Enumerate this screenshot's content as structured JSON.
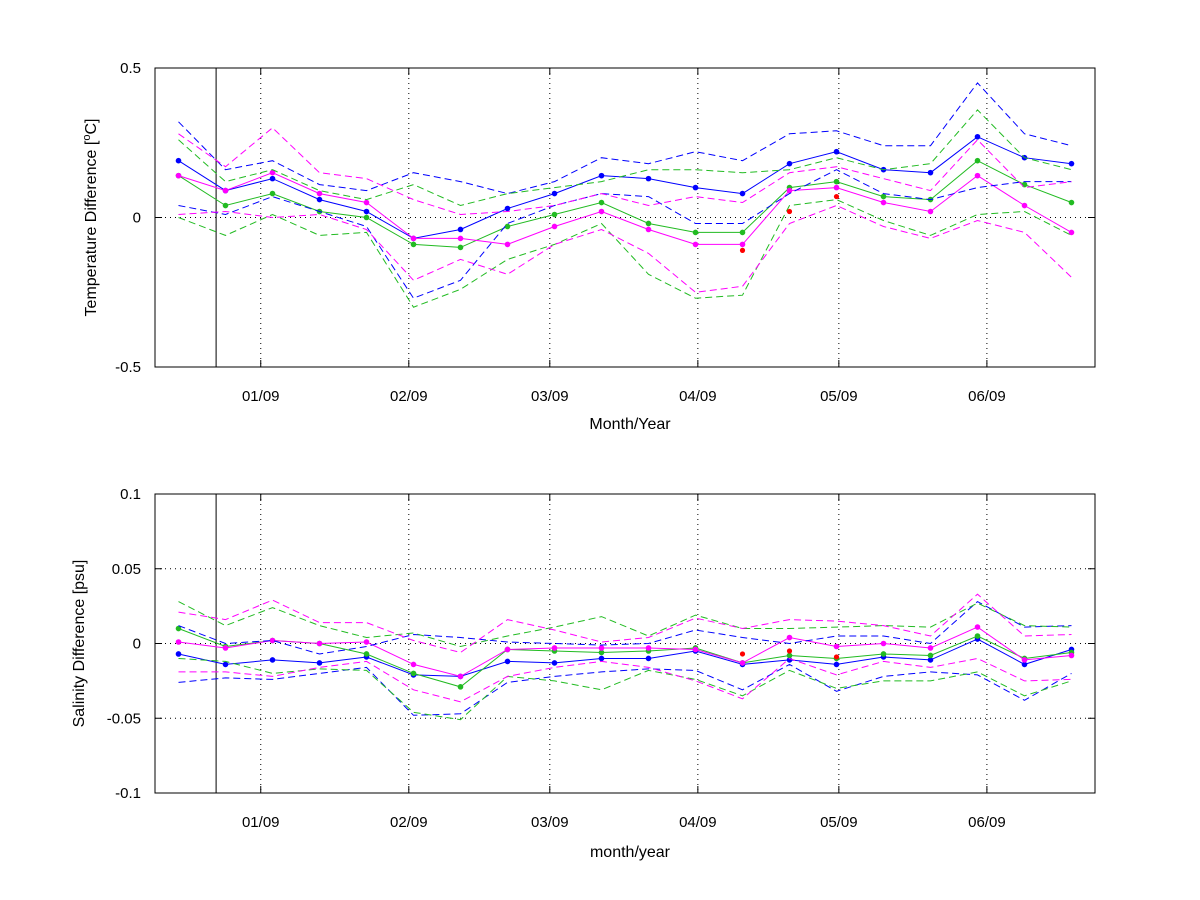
{
  "chart_data": [
    {
      "type": "line",
      "ylabel_main": "Temperature Difference [",
      "ylabel_sup": "o",
      "ylabel_end": "C]",
      "xlabel": "Month/Year",
      "xlim": [
        0,
        20
      ],
      "ylim": [
        -0.5,
        0.5
      ],
      "x_ticks": [
        {
          "x": 2.25,
          "label": "01/09"
        },
        {
          "x": 5.4,
          "label": "02/09"
        },
        {
          "x": 8.4,
          "label": "03/09"
        },
        {
          "x": 11.55,
          "label": "04/09"
        },
        {
          "x": 14.55,
          "label": "05/09"
        },
        {
          "x": 17.7,
          "label": "06/09"
        }
      ],
      "y_ticks": [
        {
          "y": 0.5,
          "label": "0.5"
        },
        {
          "y": 0,
          "label": "0"
        },
        {
          "y": -0.5,
          "label": "-0.5"
        }
      ],
      "grid": "dotted",
      "vertical_reference_line_x": 1.3,
      "x": [
        0.5,
        1.5,
        2.5,
        3.5,
        4.5,
        5.5,
        6.5,
        7.5,
        8.5,
        9.5,
        10.5,
        11.5,
        12.5,
        13.5,
        14.5,
        15.5,
        16.5,
        17.5,
        18.5,
        19.5
      ],
      "series": [
        {
          "color": "#0000ff",
          "style": "solid",
          "marker": true,
          "values": [
            0.19,
            0.09,
            0.13,
            0.06,
            0.02,
            -0.07,
            -0.04,
            0.03,
            0.08,
            0.14,
            0.13,
            0.1,
            0.08,
            0.18,
            0.22,
            0.16,
            0.15,
            0.27,
            0.2,
            0.18
          ]
        },
        {
          "color": "#22bb22",
          "style": "solid",
          "marker": true,
          "values": [
            0.14,
            0.04,
            0.08,
            0.02,
            0.0,
            -0.09,
            -0.1,
            -0.03,
            0.01,
            0.05,
            -0.02,
            -0.05,
            -0.05,
            0.1,
            0.12,
            0.07,
            0.06,
            0.19,
            0.11,
            0.05
          ]
        },
        {
          "color": "#ff00ff",
          "style": "solid",
          "marker": true,
          "values": [
            0.14,
            0.09,
            0.15,
            0.08,
            0.05,
            -0.07,
            -0.07,
            -0.09,
            -0.03,
            0.02,
            -0.04,
            -0.09,
            -0.09,
            0.09,
            0.1,
            0.05,
            0.02,
            0.14,
            0.04,
            -0.05
          ]
        },
        {
          "color": "#0000ff",
          "style": "dashed",
          "marker": false,
          "values": [
            0.32,
            0.16,
            0.19,
            0.11,
            0.09,
            0.15,
            0.12,
            0.08,
            0.12,
            0.2,
            0.18,
            0.22,
            0.19,
            0.28,
            0.29,
            0.24,
            0.24,
            0.45,
            0.28,
            0.24
          ]
        },
        {
          "color": "#0000ff",
          "style": "dashed",
          "marker": false,
          "values": [
            0.04,
            0.01,
            0.07,
            0.02,
            -0.03,
            -0.27,
            -0.21,
            -0.02,
            0.04,
            0.08,
            0.07,
            -0.02,
            -0.02,
            0.08,
            0.16,
            0.08,
            0.06,
            0.1,
            0.12,
            0.12
          ]
        },
        {
          "color": "#22bb22",
          "style": "dashed",
          "marker": false,
          "values": [
            0.26,
            0.12,
            0.16,
            0.09,
            0.06,
            0.11,
            0.04,
            0.08,
            0.1,
            0.12,
            0.16,
            0.16,
            0.15,
            0.16,
            0.2,
            0.16,
            0.18,
            0.36,
            0.2,
            0.16
          ]
        },
        {
          "color": "#22bb22",
          "style": "dashed",
          "marker": false,
          "values": [
            0.0,
            -0.06,
            0.01,
            -0.06,
            -0.05,
            -0.3,
            -0.24,
            -0.14,
            -0.09,
            -0.02,
            -0.19,
            -0.27,
            -0.26,
            0.04,
            0.06,
            -0.01,
            -0.06,
            0.01,
            0.02,
            -0.06
          ]
        },
        {
          "color": "#ff00ff",
          "style": "dashed",
          "marker": false,
          "values": [
            0.28,
            0.17,
            0.3,
            0.15,
            0.13,
            0.06,
            0.01,
            0.02,
            0.04,
            0.08,
            0.04,
            0.07,
            0.05,
            0.15,
            0.17,
            0.13,
            0.09,
            0.26,
            0.1,
            0.12
          ]
        },
        {
          "color": "#ff00ff",
          "style": "dashed",
          "marker": false,
          "values": [
            0.01,
            0.02,
            0.0,
            0.01,
            -0.04,
            -0.21,
            -0.14,
            -0.19,
            -0.09,
            -0.04,
            -0.12,
            -0.25,
            -0.23,
            -0.02,
            0.04,
            -0.03,
            -0.07,
            -0.01,
            -0.05,
            -0.2
          ]
        }
      ],
      "extra_points": {
        "color": "#ff0000",
        "points": [
          {
            "x": 12.5,
            "y": -0.11
          },
          {
            "x": 13.5,
            "y": 0.02
          },
          {
            "x": 14.5,
            "y": 0.07
          }
        ]
      }
    },
    {
      "type": "line",
      "ylabel_main": "Salinity Difference [psu]",
      "ylabel_sup": "",
      "ylabel_end": "",
      "xlabel": "month/year",
      "xlim": [
        0,
        20
      ],
      "ylim": [
        -0.1,
        0.1
      ],
      "x_ticks": [
        {
          "x": 2.25,
          "label": "01/09"
        },
        {
          "x": 5.4,
          "label": "02/09"
        },
        {
          "x": 8.4,
          "label": "03/09"
        },
        {
          "x": 11.55,
          "label": "04/09"
        },
        {
          "x": 14.55,
          "label": "05/09"
        },
        {
          "x": 17.7,
          "label": "06/09"
        }
      ],
      "y_ticks": [
        {
          "y": 0.1,
          "label": "0.1"
        },
        {
          "y": 0.05,
          "label": "0.05"
        },
        {
          "y": 0,
          "label": "0"
        },
        {
          "y": -0.05,
          "label": "-0.05"
        },
        {
          "y": -0.1,
          "label": "-0.1"
        }
      ],
      "grid": "dotted",
      "vertical_reference_line_x": 1.3,
      "x": [
        0.5,
        1.5,
        2.5,
        3.5,
        4.5,
        5.5,
        6.5,
        7.5,
        8.5,
        9.5,
        10.5,
        11.5,
        12.5,
        13.5,
        14.5,
        15.5,
        16.5,
        17.5,
        18.5,
        19.5
      ],
      "series": [
        {
          "color": "#0000ff",
          "style": "solid",
          "marker": true,
          "values": [
            -0.007,
            -0.014,
            -0.011,
            -0.013,
            -0.009,
            -0.021,
            -0.022,
            -0.012,
            -0.013,
            -0.01,
            -0.01,
            -0.005,
            -0.014,
            -0.011,
            -0.014,
            -0.009,
            -0.011,
            0.003,
            -0.014,
            -0.004
          ]
        },
        {
          "color": "#22bb22",
          "style": "solid",
          "marker": true,
          "values": [
            0.01,
            -0.002,
            0.002,
            0.0,
            -0.007,
            -0.02,
            -0.029,
            -0.004,
            -0.005,
            -0.006,
            -0.005,
            -0.003,
            -0.013,
            -0.008,
            -0.01,
            -0.007,
            -0.008,
            0.005,
            -0.01,
            -0.006
          ]
        },
        {
          "color": "#ff00ff",
          "style": "solid",
          "marker": true,
          "values": [
            0.001,
            -0.003,
            0.002,
            0.0,
            0.001,
            -0.014,
            -0.022,
            -0.004,
            -0.003,
            -0.003,
            -0.003,
            -0.004,
            -0.013,
            0.004,
            -0.002,
            0.0,
            -0.003,
            0.011,
            -0.011,
            -0.008
          ]
        },
        {
          "color": "#0000ff",
          "style": "dashed",
          "marker": false,
          "values": [
            0.012,
            0.0,
            0.002,
            -0.007,
            -0.002,
            0.006,
            0.004,
            0.001,
            0.0,
            -0.001,
            0.0,
            0.009,
            0.004,
            0.0,
            0.005,
            0.005,
            0.0,
            0.028,
            0.011,
            0.012
          ]
        },
        {
          "color": "#0000ff",
          "style": "dashed",
          "marker": false,
          "values": [
            -0.026,
            -0.023,
            -0.024,
            -0.02,
            -0.016,
            -0.048,
            -0.047,
            -0.026,
            -0.022,
            -0.019,
            -0.017,
            -0.018,
            -0.031,
            -0.014,
            -0.032,
            -0.022,
            -0.019,
            -0.021,
            -0.038,
            -0.02
          ]
        },
        {
          "color": "#22bb22",
          "style": "dashed",
          "marker": false,
          "values": [
            0.028,
            0.012,
            0.024,
            0.012,
            0.004,
            0.007,
            -0.002,
            0.005,
            0.011,
            0.018,
            0.005,
            0.019,
            0.01,
            0.01,
            0.011,
            0.012,
            0.011,
            0.027,
            0.012,
            0.011
          ]
        },
        {
          "color": "#22bb22",
          "style": "dashed",
          "marker": false,
          "values": [
            -0.01,
            -0.012,
            -0.02,
            -0.017,
            -0.018,
            -0.046,
            -0.051,
            -0.022,
            -0.025,
            -0.031,
            -0.018,
            -0.024,
            -0.035,
            -0.018,
            -0.03,
            -0.025,
            -0.025,
            -0.019,
            -0.035,
            -0.025
          ]
        },
        {
          "color": "#ff00ff",
          "style": "dashed",
          "marker": false,
          "values": [
            0.021,
            0.016,
            0.029,
            0.014,
            0.014,
            0.002,
            -0.006,
            0.016,
            0.009,
            0.001,
            0.004,
            0.017,
            0.01,
            0.016,
            0.015,
            0.012,
            0.005,
            0.033,
            0.005,
            0.006
          ]
        },
        {
          "color": "#ff00ff",
          "style": "dashed",
          "marker": false,
          "values": [
            -0.019,
            -0.019,
            -0.022,
            -0.016,
            -0.012,
            -0.031,
            -0.039,
            -0.022,
            -0.016,
            -0.012,
            -0.016,
            -0.025,
            -0.037,
            -0.01,
            -0.021,
            -0.012,
            -0.016,
            -0.01,
            -0.025,
            -0.024
          ]
        }
      ],
      "extra_points": {
        "color": "#ff0000",
        "points": [
          {
            "x": 12.5,
            "y": -0.007
          },
          {
            "x": 13.5,
            "y": -0.005
          },
          {
            "x": 14.5,
            "y": -0.009
          }
        ]
      }
    }
  ]
}
